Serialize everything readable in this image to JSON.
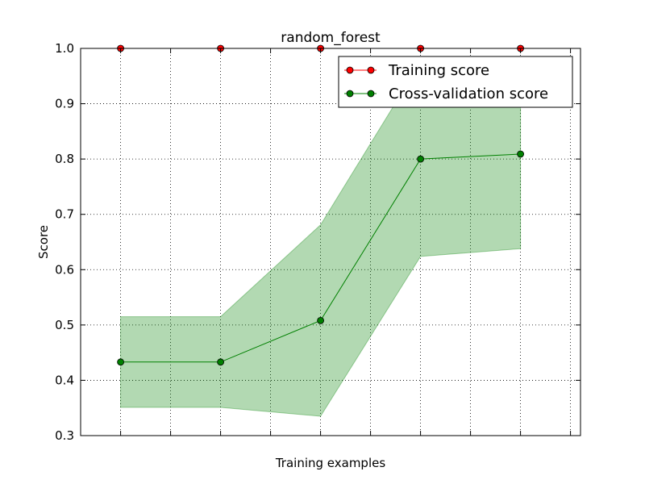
{
  "chart_data": {
    "type": "line",
    "title": "random_forest",
    "xlabel": "Training examples",
    "ylabel": "Score",
    "ylim": [
      0.3,
      1.0
    ],
    "yticks": [
      "0.3",
      "0.4",
      "0.5",
      "0.6",
      "0.7",
      "0.8",
      "0.9",
      "1.0"
    ],
    "xticks_labels_shown": false,
    "grid": true,
    "legend_position": "top-right",
    "x": [
      1,
      2,
      3,
      4,
      5
    ],
    "series": [
      {
        "name": "Training score",
        "color": "#ff0000",
        "values": [
          1.0,
          1.0,
          1.0,
          1.0,
          1.0
        ],
        "band_lower": [
          1.0,
          1.0,
          1.0,
          1.0,
          1.0
        ],
        "band_upper": [
          1.0,
          1.0,
          1.0,
          1.0,
          1.0
        ]
      },
      {
        "name": "Cross-validation score",
        "color": "#008000",
        "band_color": "#008000",
        "values": [
          0.433,
          0.433,
          0.508,
          0.8,
          0.809
        ],
        "band_lower": [
          0.351,
          0.351,
          0.335,
          0.624,
          0.638
        ],
        "band_upper": [
          0.515,
          0.515,
          0.681,
          0.975,
          0.98
        ]
      }
    ]
  }
}
